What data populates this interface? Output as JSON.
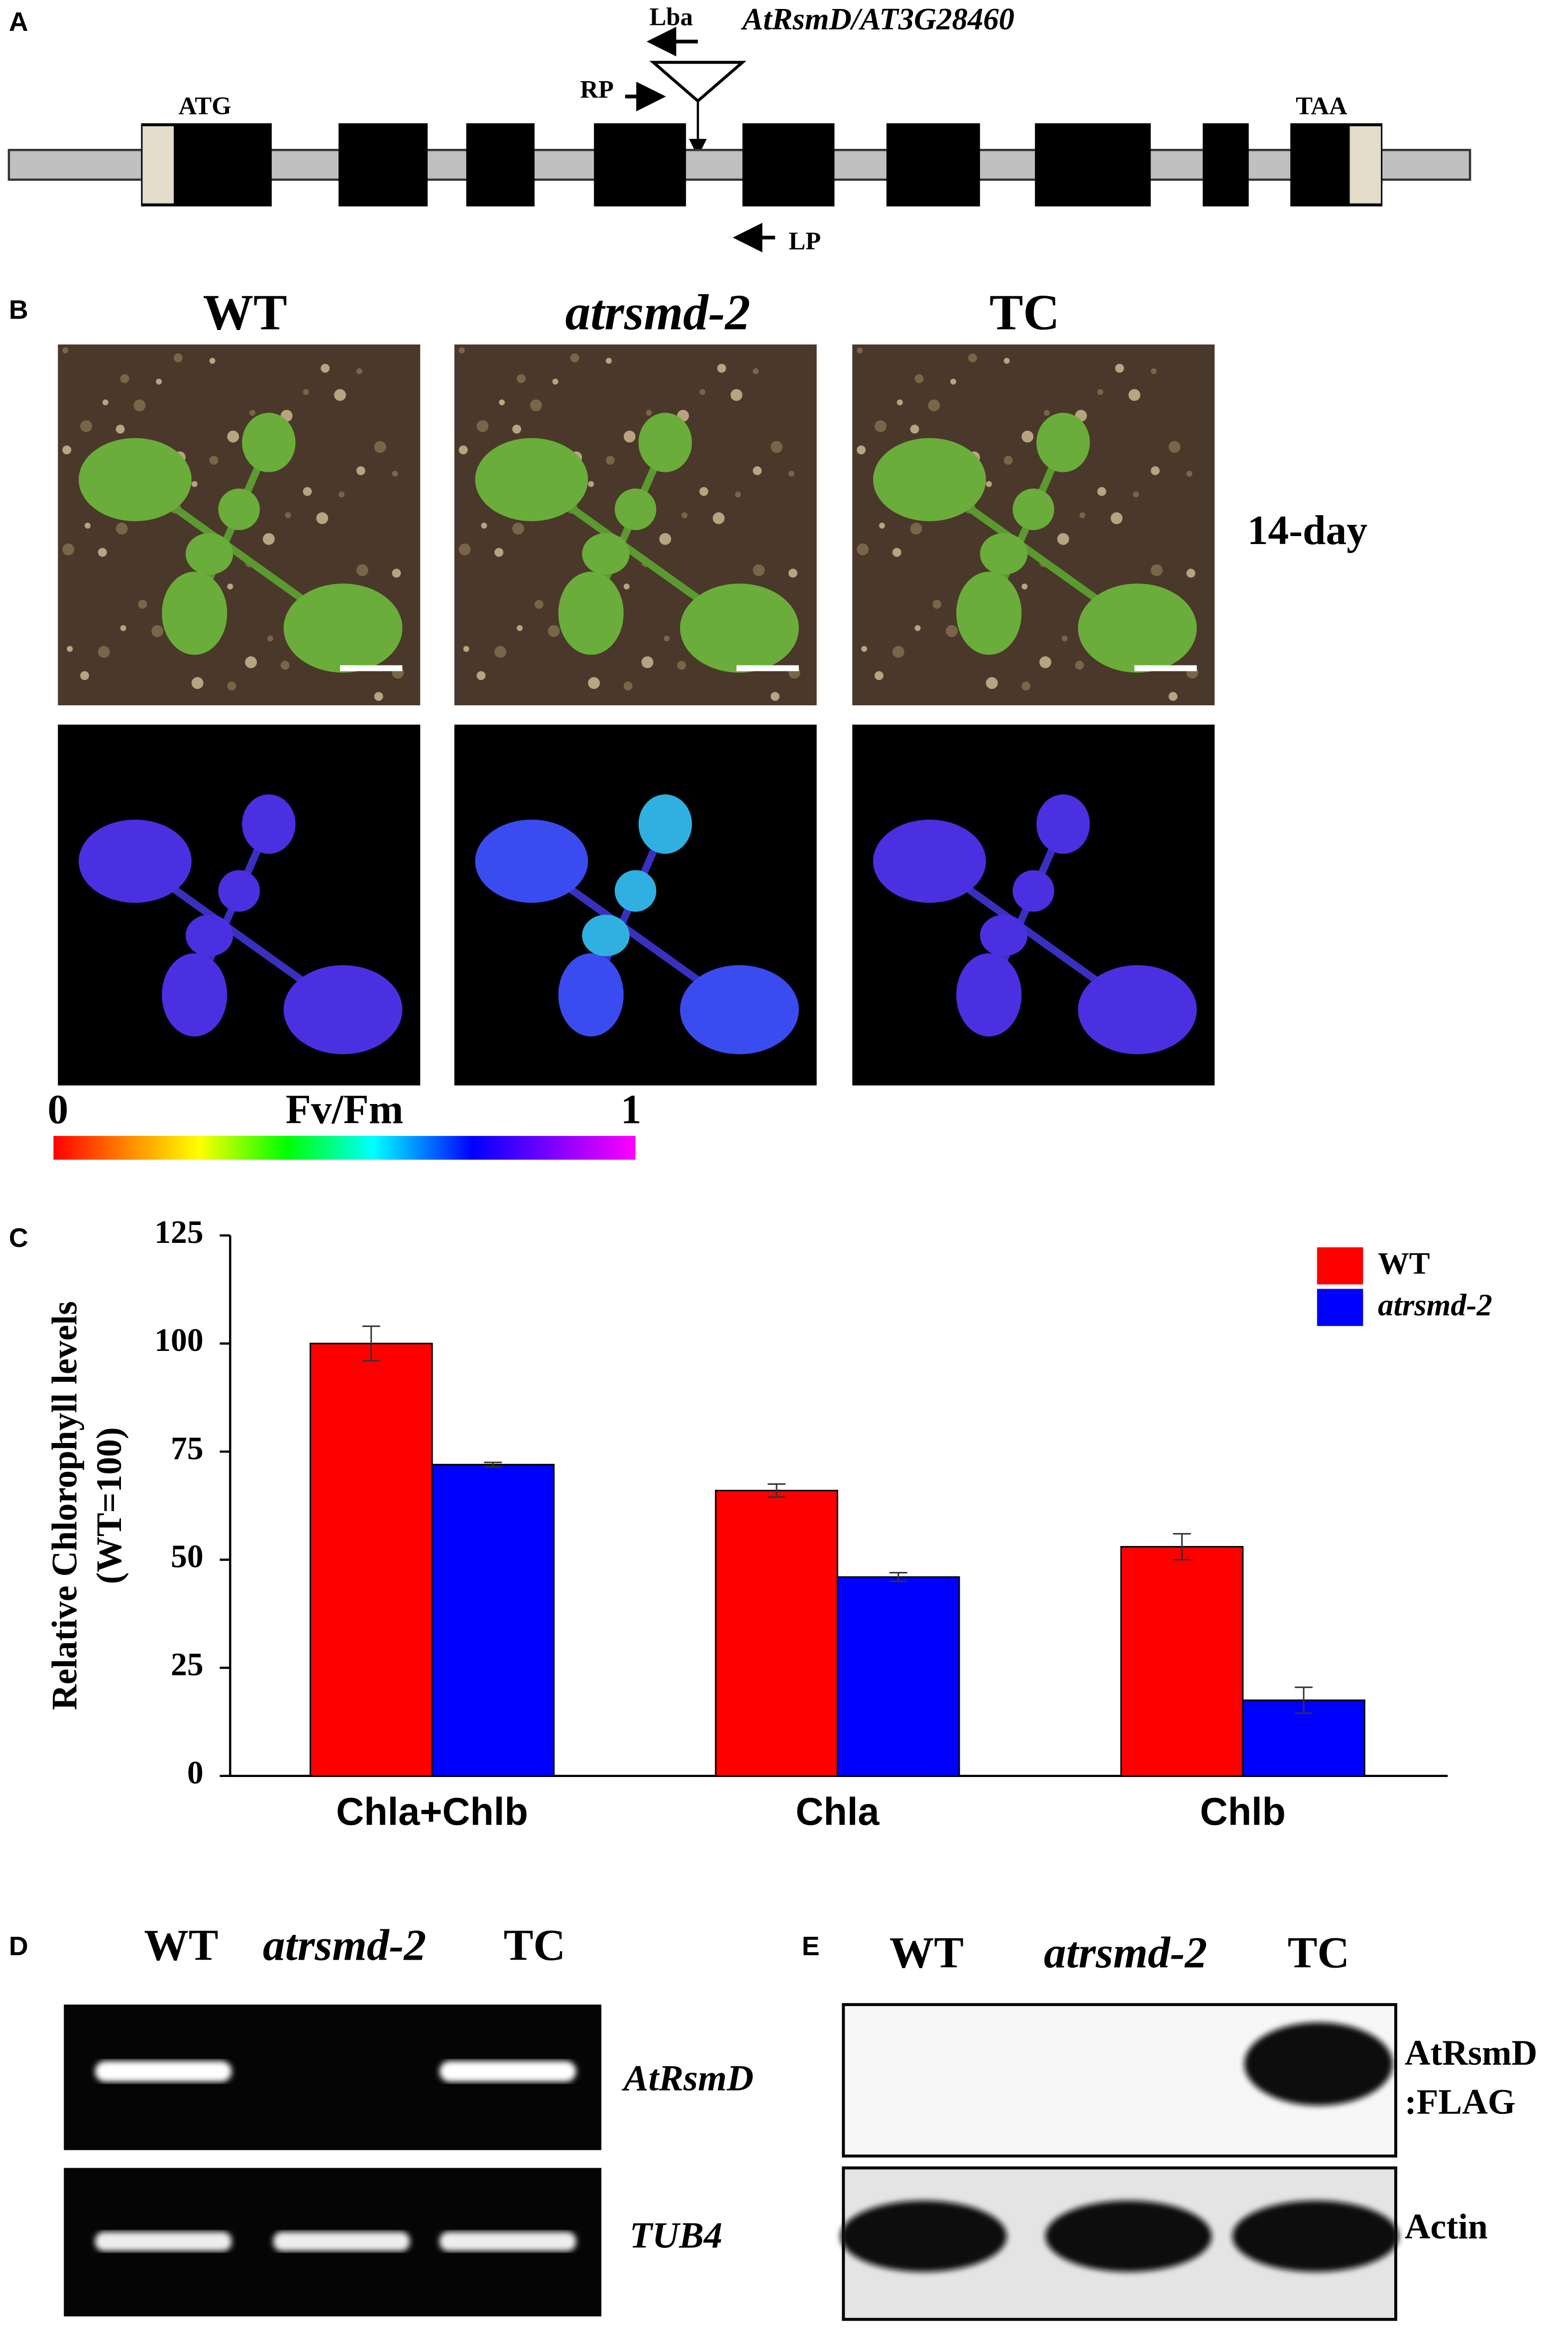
{
  "panel_a": {
    "label": "A",
    "gene": "AtRsmD/AT3G28460",
    "primers": [
      "Lba",
      "RP",
      "LP"
    ],
    "start": "ATG",
    "stop": "TAA"
  },
  "panel_b": {
    "label": "B",
    "genotypes": [
      "WT",
      "atrsmd-2",
      "TC"
    ],
    "age": "14-day",
    "scale_min": 0,
    "scale_title": "Fv/Fm",
    "scale_max": 1
  },
  "chart_data": {
    "type": "bar",
    "panel_label": "C",
    "ylabel": [
      "Relative Chlorophyll levels",
      "(WT=100)"
    ],
    "categories": [
      "Chla+Chlb",
      "Chla",
      "Chlb"
    ],
    "series": [
      {
        "name": "WT",
        "color": "#ff0000",
        "values": [
          100,
          66,
          53
        ],
        "errors": [
          4,
          1.5,
          3
        ]
      },
      {
        "name": "atrsmd-2",
        "color": "#0000ff",
        "values": [
          72,
          46,
          17.5
        ],
        "errors": [
          0.5,
          1,
          3
        ]
      }
    ],
    "ylim": [
      0,
      125
    ],
    "yticks": [
      0,
      25,
      50,
      75,
      100,
      125
    ],
    "legend": "upper right"
  },
  "panel_d": {
    "label": "D",
    "lanes": [
      "WT",
      "atrsmd-2",
      "TC"
    ],
    "genes": [
      "AtRsmD",
      "TUB4"
    ]
  },
  "panel_e": {
    "label": "E",
    "lanes": [
      "WT",
      "atrsmd-2",
      "TC"
    ],
    "proteins": [
      [
        "AtRsmD",
        ":FLAG"
      ],
      [
        "Actin"
      ]
    ]
  }
}
